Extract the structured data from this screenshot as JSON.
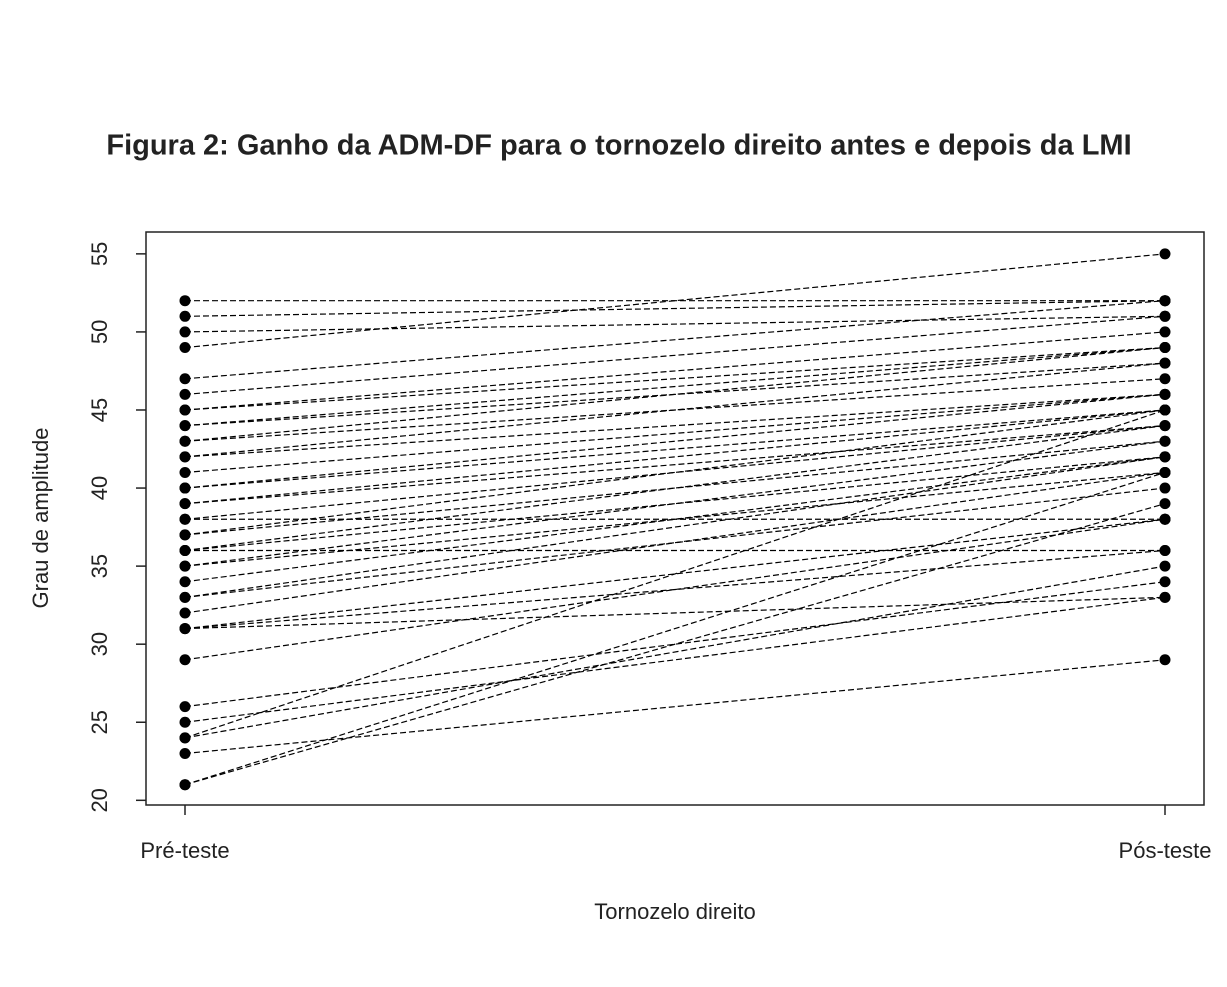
{
  "chart_data": {
    "type": "paired-line",
    "title": "Figura 2: Ganho da ADM-DF para o tornozelo direito antes e depois da LMI",
    "x_label": "Tornozelo direito",
    "y_label": "Grau de amplitude",
    "categories": [
      "Pré-teste",
      "Pós-teste"
    ],
    "color": "#000000",
    "ylim": [
      19.7,
      56.4
    ],
    "yticks": [
      20,
      25,
      30,
      35,
      40,
      45,
      50,
      55
    ],
    "series": [
      {
        "values": [
          52,
          52
        ]
      },
      {
        "values": [
          51,
          52
        ]
      },
      {
        "values": [
          50,
          51
        ]
      },
      {
        "values": [
          49,
          55
        ]
      },
      {
        "values": [
          47,
          52
        ]
      },
      {
        "values": [
          46,
          51
        ]
      },
      {
        "values": [
          45,
          50
        ]
      },
      {
        "values": [
          45,
          49
        ]
      },
      {
        "values": [
          44,
          49
        ]
      },
      {
        "values": [
          44,
          48
        ]
      },
      {
        "values": [
          43,
          49
        ]
      },
      {
        "values": [
          43,
          47
        ]
      },
      {
        "values": [
          42,
          48
        ]
      },
      {
        "values": [
          42,
          46
        ]
      },
      {
        "values": [
          41,
          46
        ]
      },
      {
        "values": [
          40,
          45
        ]
      },
      {
        "values": [
          40,
          46
        ]
      },
      {
        "values": [
          39,
          45
        ]
      },
      {
        "values": [
          39,
          44
        ]
      },
      {
        "values": [
          38,
          44
        ]
      },
      {
        "values": [
          38,
          38
        ]
      },
      {
        "values": [
          37,
          45
        ]
      },
      {
        "values": [
          37,
          43
        ]
      },
      {
        "values": [
          36,
          44
        ]
      },
      {
        "values": [
          36,
          42
        ]
      },
      {
        "values": [
          36,
          36
        ]
      },
      {
        "values": [
          35,
          43
        ]
      },
      {
        "values": [
          35,
          41
        ]
      },
      {
        "values": [
          34,
          42
        ]
      },
      {
        "values": [
          33,
          42
        ]
      },
      {
        "values": [
          33,
          40
        ]
      },
      {
        "values": [
          32,
          41
        ]
      },
      {
        "values": [
          31,
          38
        ]
      },
      {
        "values": [
          31,
          36
        ]
      },
      {
        "values": [
          31,
          33
        ]
      },
      {
        "values": [
          29,
          38
        ]
      },
      {
        "values": [
          26,
          34
        ]
      },
      {
        "values": [
          25,
          33
        ]
      },
      {
        "values": [
          24,
          35
        ]
      },
      {
        "values": [
          24,
          45
        ]
      },
      {
        "values": [
          23,
          29
        ]
      },
      {
        "values": [
          21,
          41
        ]
      },
      {
        "values": [
          21,
          39
        ]
      }
    ]
  }
}
